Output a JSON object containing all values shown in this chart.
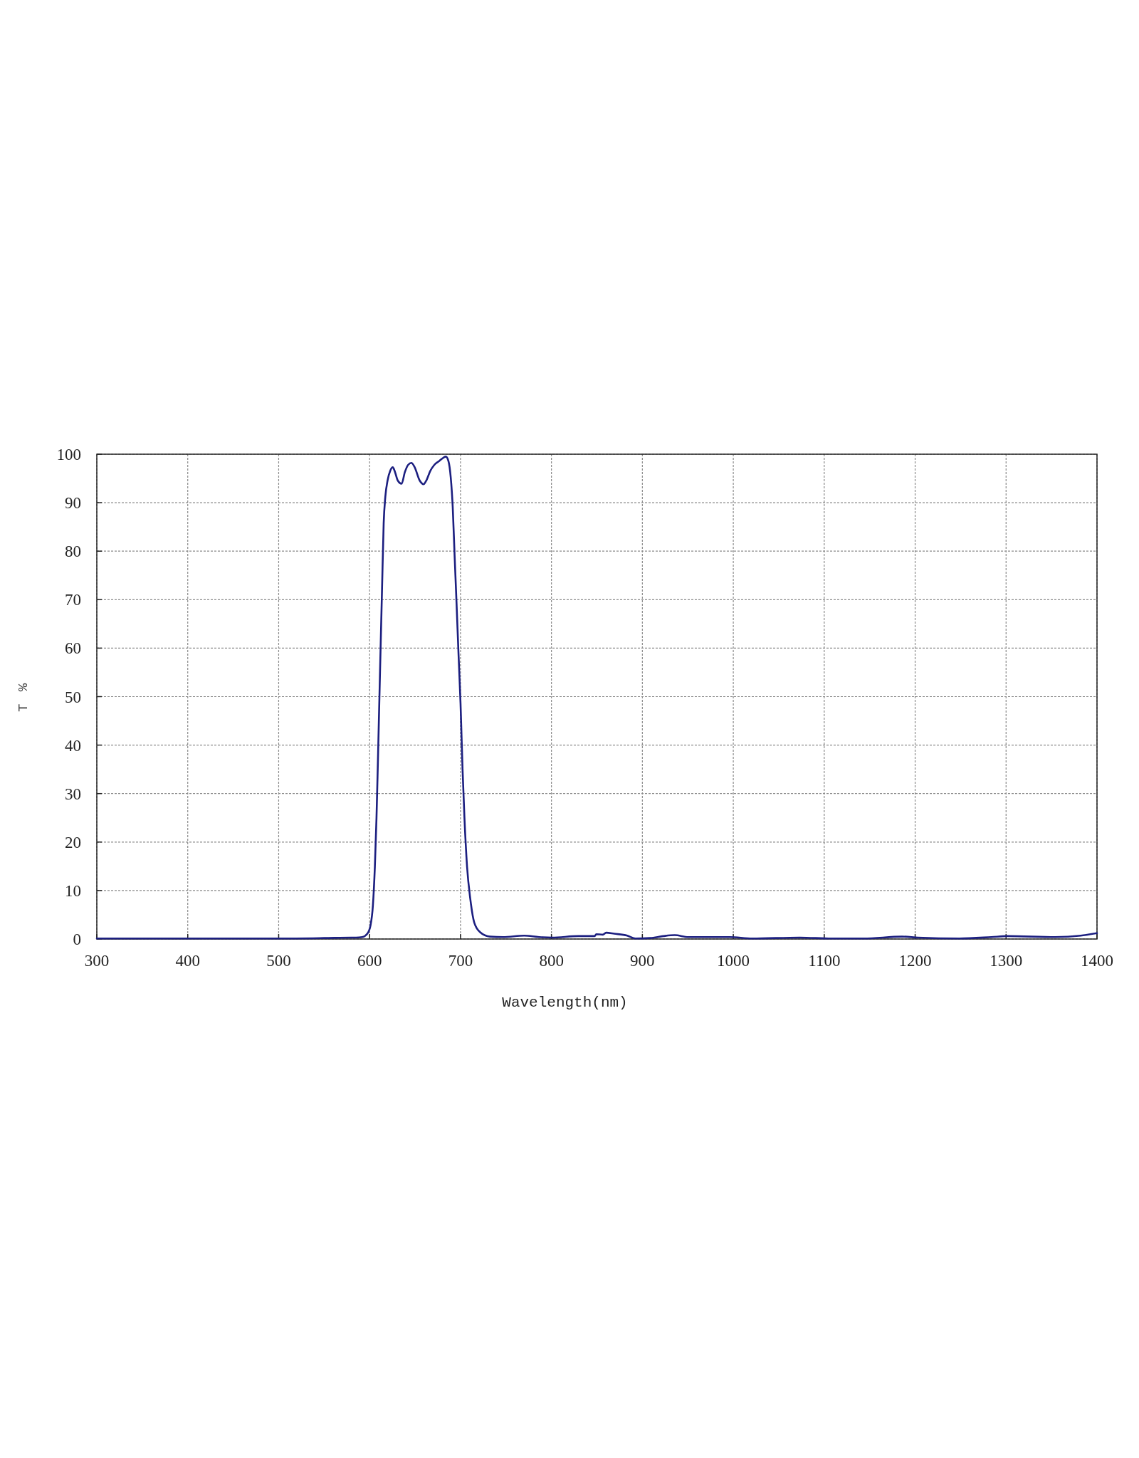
{
  "chart_data": {
    "type": "line",
    "xlabel": "Wavelength(nm)",
    "ylabel": "T %",
    "xlim": [
      300,
      1400
    ],
    "xticks": [
      300,
      400,
      500,
      600,
      700,
      800,
      900,
      1000,
      1100,
      1200,
      1300,
      1400
    ],
    "ylim": [
      0,
      100
    ],
    "yticks": [
      0,
      10,
      20,
      30,
      40,
      50,
      60,
      70,
      80,
      90,
      100
    ],
    "grid": true,
    "line_style": "solid",
    "marker": "none",
    "series": [
      {
        "color": "#1c1f80",
        "x": [
          300,
          400,
          500,
          550,
          580,
          585,
          592,
          597.5,
          601,
          603.6,
          605.8,
          607.6,
          609.4,
          611.5,
          613.7,
          615.5,
          617.3,
          619.8,
          622.7,
          625.5,
          628,
          630.9,
          635.2,
          638.8,
          642.4,
          646,
          649.6,
          655,
          659.4,
          662.2,
          666.9,
          671.2,
          676.6,
          681.3,
          683.8,
          686.7,
          689.2,
          691.4,
          693.5,
          695.7,
          697.8,
          700,
          702.2,
          704.3,
          707.2,
          710.8,
          715.1,
          721.6,
          732.4,
          746.8,
          770.1,
          786.3,
          800.7,
          829.5,
          847.5,
          849.3,
          856.5,
          860.2,
          869,
          883.4,
          892.4,
          908.6,
          923,
          935.6,
          950.5,
          996,
          1020.7,
          1073,
          1108,
          1143.5,
          1185.6,
          1203,
          1248.8,
          1283.9,
          1301.4,
          1354,
          1382.1,
          1400
        ],
        "values": [
          0.1,
          0.1,
          0.1,
          0.2,
          0.3,
          0.3,
          0.4,
          1.1,
          2.8,
          6.8,
          14.9,
          25,
          38.6,
          55.4,
          72.3,
          85.8,
          91.2,
          94.6,
          96.6,
          97.3,
          96.3,
          94.6,
          93.9,
          96.3,
          97.8,
          98.2,
          97.3,
          94.6,
          93.8,
          94.5,
          96.6,
          97.8,
          98.6,
          99.3,
          99.5,
          98.6,
          95.3,
          89.2,
          79.1,
          68.9,
          58.8,
          48.7,
          35.2,
          25.1,
          14.9,
          8.2,
          3.4,
          1.4,
          0.5,
          0.4,
          0.7,
          0.4,
          0.3,
          0.6,
          0.6,
          1.0,
          0.9,
          1.3,
          1.1,
          0.7,
          0.1,
          0.2,
          0.6,
          0.8,
          0.4,
          0.4,
          0.1,
          0.3,
          0.1,
          0.1,
          0.5,
          0.3,
          0.1,
          0.4,
          0.6,
          0.4,
          0.7,
          1.2
        ]
      }
    ]
  }
}
